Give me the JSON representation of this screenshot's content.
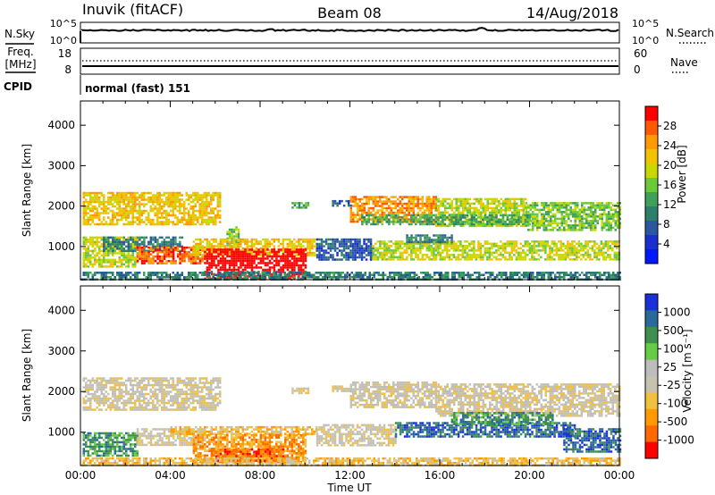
{
  "header": {
    "station": "Inuvik (fitACF)",
    "beam": "Beam 08",
    "date": "14/Aug/2018"
  },
  "noise_panel": {
    "left_label": "N.Sky",
    "right_label": "N.Search",
    "left_ticks": [
      "10^5",
      "10^0"
    ],
    "right_ticks": [
      "10^5",
      "10^0"
    ]
  },
  "freq_panel": {
    "left_label_1": "Freq.",
    "left_label_2": "[MHz]",
    "right_label": "Nave",
    "left_ticks": [
      "18",
      "8"
    ],
    "right_ticks": [
      "60",
      "0"
    ]
  },
  "cpid": {
    "label": "CPID",
    "mode": "normal (fast) 151"
  },
  "chart_data": [
    {
      "type": "heatmap",
      "quantity": "power",
      "ylabel": "Slant Range [km]",
      "xlabel": "Time UT",
      "y_ticks": [
        1000,
        2000,
        3000,
        4000
      ],
      "ylim": [
        180,
        4600
      ],
      "xlim_hours": [
        0,
        24
      ],
      "x_tick_labels": [
        "00:00",
        "04:00",
        "08:00",
        "12:00",
        "16:00",
        "20:00",
        "00:00"
      ],
      "colorbar": {
        "label": "Power [dB]",
        "ticks": [
          "28",
          "24",
          "20",
          "16",
          "12",
          "8",
          "4"
        ],
        "colors": [
          "#ff0000",
          "#ff5a00",
          "#ff9a00",
          "#f2c200",
          "#c8d800",
          "#6cc93a",
          "#3fa05a",
          "#2e7f6a",
          "#2b57a0",
          "#1a2fd0",
          "#0018ff"
        ]
      },
      "regions": [
        {
          "t0": 0.1,
          "t1": 6.2,
          "r0": 1550,
          "r1": 2350,
          "level": 7
        },
        {
          "t0": 6.5,
          "t1": 7.0,
          "r0": 1000,
          "r1": 1500,
          "level": 5
        },
        {
          "t0": 9.4,
          "t1": 10.1,
          "r0": 1950,
          "r1": 2100,
          "level": 4
        },
        {
          "t0": 11.2,
          "t1": 12.0,
          "r0": 2000,
          "r1": 2150,
          "level": 2
        },
        {
          "t0": 12.0,
          "t1": 15.8,
          "r0": 1600,
          "r1": 2250,
          "level": 8
        },
        {
          "t0": 15.8,
          "t1": 19.8,
          "r0": 1500,
          "r1": 2200,
          "level": 6
        },
        {
          "t0": 19.8,
          "t1": 24.0,
          "r0": 1400,
          "r1": 2100,
          "level": 5
        },
        {
          "t0": 12.5,
          "t1": 20.0,
          "r0": 1550,
          "r1": 1800,
          "level": 4
        },
        {
          "t0": 0.1,
          "t1": 2.5,
          "r0": 500,
          "r1": 1250,
          "level": 6
        },
        {
          "t0": 1.0,
          "t1": 4.5,
          "r0": 900,
          "r1": 1250,
          "level": 3
        },
        {
          "t0": 2.5,
          "t1": 5.5,
          "r0": 600,
          "r1": 1000,
          "level": 9
        },
        {
          "t0": 5.0,
          "t1": 10.5,
          "r0": 800,
          "r1": 1200,
          "level": 7
        },
        {
          "t0": 5.5,
          "t1": 10.0,
          "r0": 200,
          "r1": 950,
          "level": 12
        },
        {
          "t0": 10.5,
          "t1": 13.0,
          "r0": 700,
          "r1": 1200,
          "level": 2
        },
        {
          "t0": 13.0,
          "t1": 24.0,
          "r0": 700,
          "r1": 1150,
          "level": 6
        },
        {
          "t0": 14.5,
          "t1": 16.5,
          "r0": 1100,
          "r1": 1300,
          "level": 3
        },
        {
          "t0": 0.0,
          "t1": 24.0,
          "r0": 180,
          "r1": 380,
          "level": 3
        }
      ]
    },
    {
      "type": "heatmap",
      "quantity": "velocity",
      "ylabel": "Slant Range [km]",
      "xlabel": "Time UT",
      "y_ticks": [
        1000,
        2000,
        3000,
        4000
      ],
      "ylim": [
        180,
        4600
      ],
      "xlim_hours": [
        0,
        24
      ],
      "x_tick_labels": [
        "00:00",
        "04:00",
        "08:00",
        "12:00",
        "16:00",
        "20:00",
        "00:00"
      ],
      "colorbar": {
        "label": "Velocity [m s⁻¹]",
        "ticks": [
          "1000",
          "500",
          "100",
          "25",
          "-25",
          "-100",
          "-500",
          "-1000"
        ],
        "colors": [
          "#1a30d8",
          "#2a6a9a",
          "#3f8f50",
          "#66cc44",
          "#bdbdbd",
          "#c7c2b0",
          "#f0c040",
          "#ff9a00",
          "#ff6a00",
          "#ff0000"
        ]
      },
      "regions": [
        {
          "t0": 0.1,
          "t1": 6.2,
          "r0": 1550,
          "r1": 2350,
          "level": 4
        },
        {
          "t0": 9.4,
          "t1": 10.1,
          "r0": 1950,
          "r1": 2100,
          "level": 4
        },
        {
          "t0": 11.2,
          "t1": 12.0,
          "r0": 2000,
          "r1": 2150,
          "level": 4
        },
        {
          "t0": 12.0,
          "t1": 15.8,
          "r0": 1600,
          "r1": 2250,
          "level": 4
        },
        {
          "t0": 15.8,
          "t1": 24.0,
          "r0": 1400,
          "r1": 2200,
          "level": 4
        },
        {
          "t0": 0.1,
          "t1": 2.5,
          "r0": 450,
          "r1": 1000,
          "level": 7
        },
        {
          "t0": 2.5,
          "t1": 5.5,
          "r0": 700,
          "r1": 1100,
          "level": 4
        },
        {
          "t0": 4.0,
          "t1": 10.5,
          "r0": 950,
          "r1": 1150,
          "level": 3
        },
        {
          "t0": 5.0,
          "t1": 10.0,
          "r0": 250,
          "r1": 950,
          "level": 2
        },
        {
          "t0": 6.0,
          "t1": 9.0,
          "r0": 300,
          "r1": 600,
          "level": 1
        },
        {
          "t0": 10.5,
          "t1": 14.0,
          "r0": 700,
          "r1": 1200,
          "level": 4
        },
        {
          "t0": 14.0,
          "t1": 22.0,
          "r0": 900,
          "r1": 1250,
          "level": 8
        },
        {
          "t0": 16.5,
          "t1": 21.0,
          "r0": 1200,
          "r1": 1500,
          "level": 7
        },
        {
          "t0": 21.5,
          "t1": 24.0,
          "r0": 500,
          "r1": 1100,
          "level": 8
        },
        {
          "t0": 0.0,
          "t1": 24.0,
          "r0": 180,
          "r1": 380,
          "level": 3
        }
      ]
    }
  ]
}
